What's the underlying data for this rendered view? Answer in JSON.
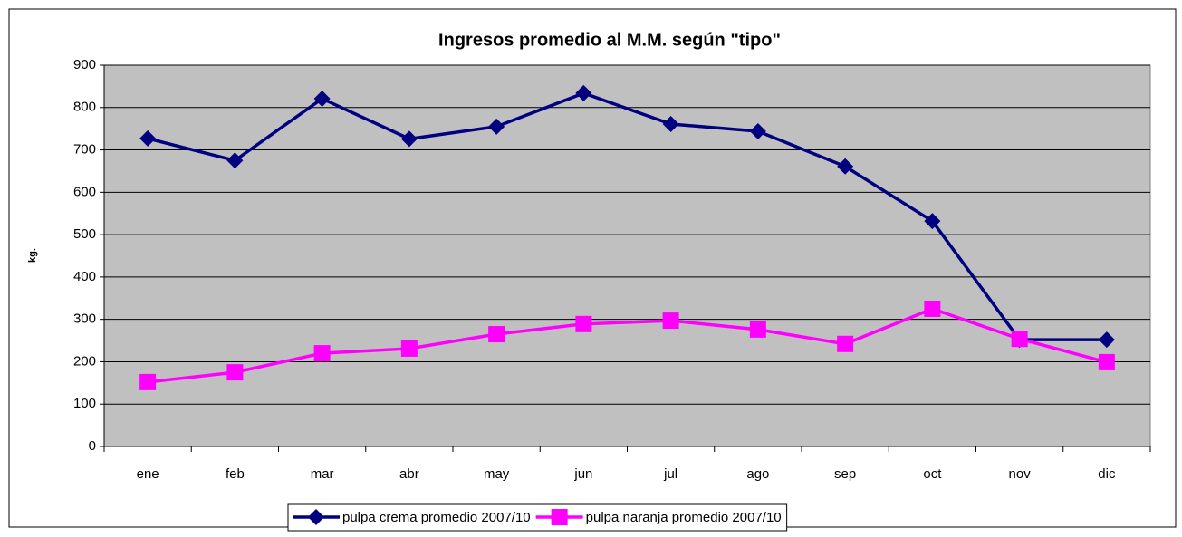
{
  "chart_data": {
    "type": "line",
    "title": "Ingresos promedio al M.M. según \"tipo\"",
    "y_label": "kg.",
    "categories": [
      "ene",
      "feb",
      "mar",
      "abr",
      "may",
      "jun",
      "jul",
      "ago",
      "sep",
      "oct",
      "nov",
      "dic"
    ],
    "series": [
      {
        "name": "pulpa crema promedio 2007/10",
        "color": "#000080",
        "marker": "diamond",
        "values": [
          727,
          675,
          821,
          726,
          755,
          834,
          761,
          744,
          661,
          532,
          252,
          252
        ]
      },
      {
        "name": "pulpa naranja promedio 2007/10",
        "color": "#ff00ff",
        "marker": "square",
        "values": [
          152,
          175,
          220,
          231,
          265,
          289,
          297,
          276,
          242,
          325,
          254,
          199
        ]
      }
    ],
    "ylim": [
      0,
      900
    ],
    "yticks": [
      0,
      100,
      200,
      300,
      400,
      500,
      600,
      700,
      800,
      900
    ],
    "grid": true,
    "legend": "bottom"
  }
}
